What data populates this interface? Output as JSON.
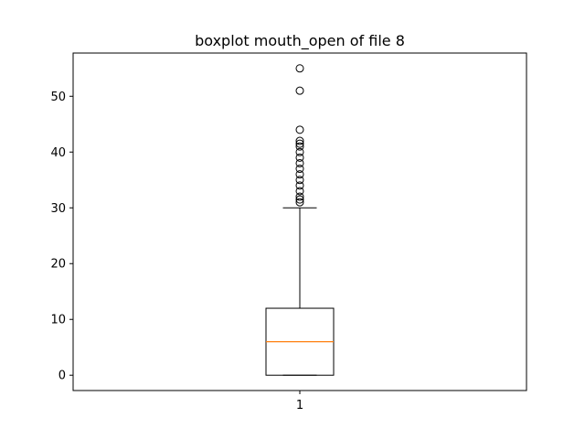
{
  "chart_data": {
    "type": "boxplot",
    "title": "boxplot mouth_open of file 8",
    "xlabel": "",
    "ylabel": "",
    "categories": [
      "1"
    ],
    "ylim": [
      -2.75,
      57.75
    ],
    "yticks": [
      0,
      10,
      20,
      30,
      40,
      50
    ],
    "ytick_labels": [
      "0",
      "10",
      "20",
      "30",
      "40",
      "50"
    ],
    "grid": false,
    "boxes": [
      {
        "category": "1",
        "whisker_low": 0,
        "q1": 0,
        "median": 6,
        "q3": 12,
        "whisker_high": 30,
        "outliers": [
          31,
          31.5,
          32,
          33,
          34,
          35,
          36,
          37,
          38,
          39,
          40,
          41,
          41.5,
          42,
          44,
          51,
          55
        ]
      }
    ],
    "colors": {
      "box": "#000000",
      "median": "#ff7f0e",
      "whisker": "#000000",
      "outlier": "#000000"
    }
  }
}
